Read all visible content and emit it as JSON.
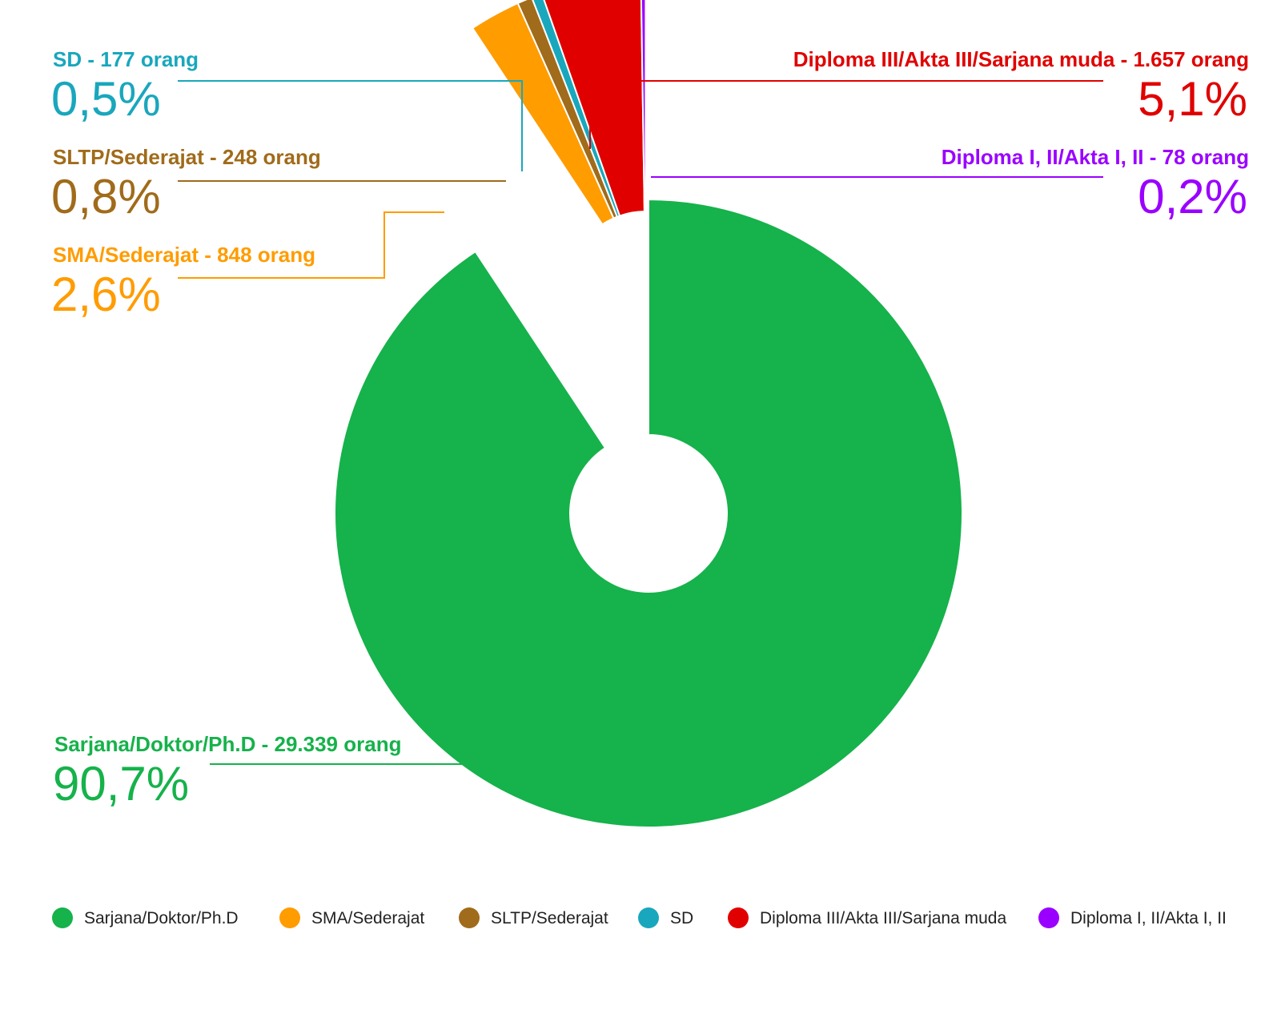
{
  "chart_data": {
    "type": "pie",
    "title": "",
    "unit": "orang",
    "donut": true,
    "legend": "bottom",
    "slices": [
      {
        "key": "sarjana",
        "label": "Sarjana/Doktor/Ph.D",
        "annotation": "Sarjana/Doktor/Ph.D - 29.339 orang",
        "value": 29339,
        "percent_label": "90,7%",
        "color": "#16b24b",
        "exploded": false
      },
      {
        "key": "sma",
        "label": "SMA/Sederajat",
        "annotation": "SMA/Sederajat - 848 orang",
        "value": 848,
        "percent_label": "2,6%",
        "color": "#ff9c00",
        "exploded": true
      },
      {
        "key": "sltp",
        "label": "SLTP/Sederajat",
        "annotation": "SLTP/Sederajat - 248 orang",
        "value": 248,
        "percent_label": "0,8%",
        "color": "#a06b1a",
        "exploded": true
      },
      {
        "key": "sd",
        "label": "SD",
        "annotation": "SD - 177 orang",
        "value": 177,
        "percent_label": "0,5%",
        "color": "#19a7bd",
        "exploded": true
      },
      {
        "key": "d3",
        "label": "Diploma III/Akta III/Sarjana muda",
        "annotation": "Diploma III/Akta III/Sarjana muda - 1.657 orang",
        "value": 1657,
        "percent_label": "5,1%",
        "color": "#e00000",
        "exploded": true
      },
      {
        "key": "d12",
        "label": "Diploma I, II/Akta I, II",
        "annotation": "Diploma I, II/Akta I, II - 78 orang",
        "value": 78,
        "percent_label": "0,2%",
        "color": "#9a00ff",
        "exploded": true
      }
    ]
  }
}
